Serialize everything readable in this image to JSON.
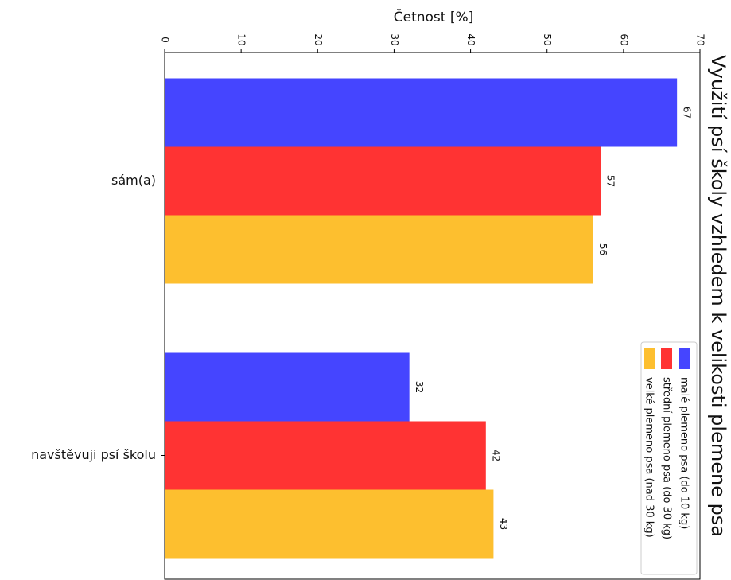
{
  "chart_data": {
    "type": "bar",
    "orientation": "horizontal",
    "title": "Využití psí školy vzhledem k velikosti plemene psa",
    "xlabel": "Četnost [%]",
    "categories": [
      "sám(a)",
      "navštěvuji psí školu"
    ],
    "series": [
      {
        "name": "malé plemeno psa (do 10 kg)",
        "color": "#4545ff",
        "values": [
          67,
          32
        ]
      },
      {
        "name": "střední plemeno psa (do 30 kg)",
        "color": "#ff3333",
        "values": [
          57,
          42
        ]
      },
      {
        "name": "velké plemeno psa (nad 30 kg)",
        "color": "#fdbf2f",
        "values": [
          56,
          43
        ]
      }
    ],
    "xlim": [
      0,
      70
    ],
    "xticks": [
      0,
      10,
      20,
      30,
      40,
      50,
      60,
      70
    ]
  }
}
